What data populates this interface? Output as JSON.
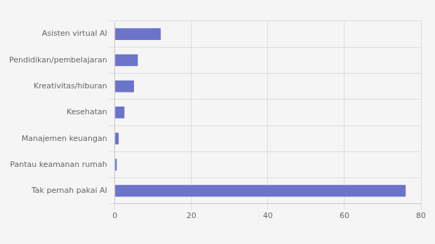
{
  "chart_data": {
    "type": "bar",
    "orientation": "horizontal",
    "categories": [
      "Tak pernah pakai AI",
      "Pantau keamanan rumah",
      "Manajemen keuangan",
      "Kesehatan",
      "Kreativitas/hiburan",
      "Pendidikan/pembelajaran",
      "Asisten virtual AI"
    ],
    "values": [
      76,
      0.5,
      1,
      2.5,
      5,
      6,
      12
    ],
    "color": "#6b74c8",
    "xlim": [
      0,
      80
    ],
    "xticks": [
      0,
      20,
      40,
      60,
      80
    ],
    "grid": true
  }
}
